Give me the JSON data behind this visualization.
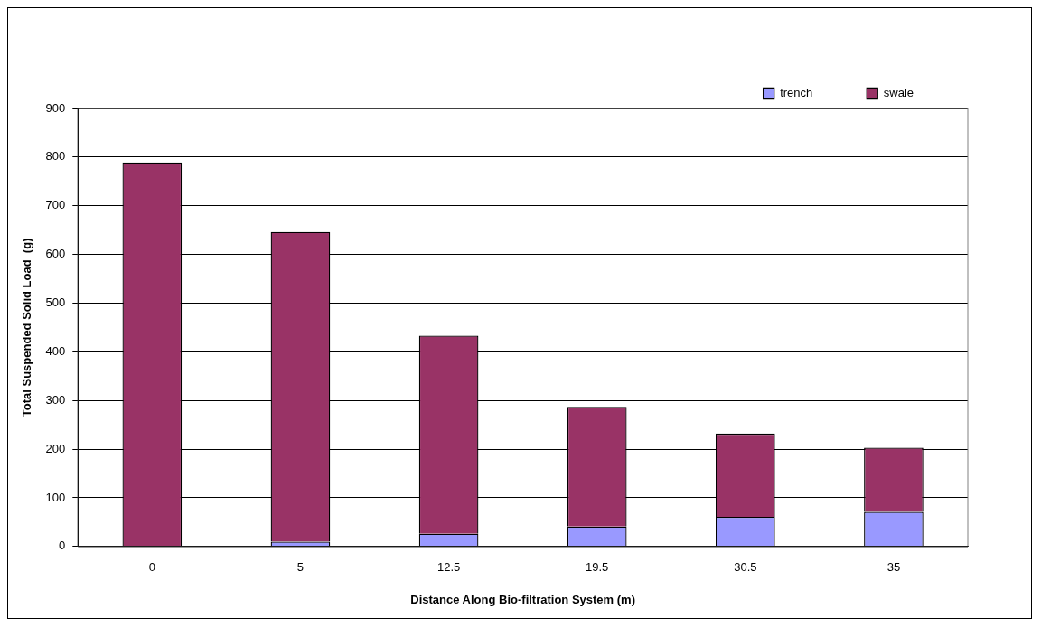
{
  "chart_data": {
    "type": "bar",
    "stacked": true,
    "xlabel": "Distance Along Bio-filtration System (m)",
    "ylabel": "Total Suspended Solid Load  (g)",
    "categories": [
      "0",
      "5",
      "12.5",
      "19.5",
      "30.5",
      "35"
    ],
    "series": [
      {
        "name": "trench",
        "color": "#9999ff",
        "values": [
          0,
          10,
          26,
          41,
          61,
          71
        ]
      },
      {
        "name": "swale",
        "color": "#993366",
        "values": [
          789,
          636,
          407,
          246,
          171,
          132
        ]
      }
    ],
    "ylim": [
      0,
      900
    ],
    "yticks": [
      0,
      100,
      200,
      300,
      400,
      500,
      600,
      700,
      800,
      900
    ],
    "grid": "y",
    "legend": "top right"
  }
}
